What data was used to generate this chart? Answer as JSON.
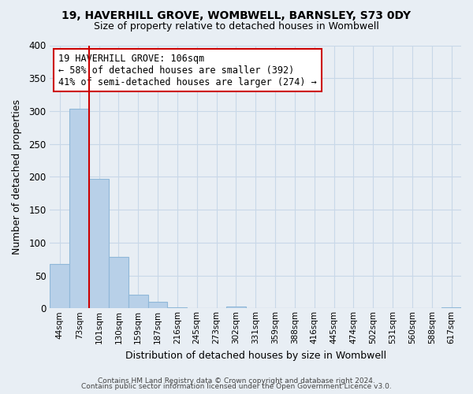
{
  "title1": "19, HAVERHILL GROVE, WOMBWELL, BARNSLEY, S73 0DY",
  "title2": "Size of property relative to detached houses in Wombwell",
  "xlabel": "Distribution of detached houses by size in Wombwell",
  "ylabel": "Number of detached properties",
  "bin_labels": [
    "44sqm",
    "73sqm",
    "101sqm",
    "130sqm",
    "159sqm",
    "187sqm",
    "216sqm",
    "245sqm",
    "273sqm",
    "302sqm",
    "331sqm",
    "359sqm",
    "388sqm",
    "416sqm",
    "445sqm",
    "474sqm",
    "502sqm",
    "531sqm",
    "560sqm",
    "588sqm",
    "617sqm"
  ],
  "bar_values": [
    68,
    303,
    197,
    78,
    21,
    10,
    1,
    0,
    0,
    3,
    0,
    0,
    0,
    0,
    0,
    0,
    0,
    0,
    0,
    0,
    2
  ],
  "bar_color": "#b8d0e8",
  "bar_edgecolor": "#90b8d8",
  "property_line_color": "#cc0000",
  "annotation_line1": "19 HAVERHILL GROVE: 106sqm",
  "annotation_line2": "← 58% of detached houses are smaller (392)",
  "annotation_line3": "41% of semi-detached houses are larger (274) →",
  "annotation_box_color": "#ffffff",
  "annotation_box_edgecolor": "#cc0000",
  "ylim": [
    0,
    400
  ],
  "yticks": [
    0,
    50,
    100,
    150,
    200,
    250,
    300,
    350,
    400
  ],
  "footer1": "Contains HM Land Registry data © Crown copyright and database right 2024.",
  "footer2": "Contains public sector information licensed under the Open Government Licence v3.0.",
  "bg_color": "#e8eef4",
  "plot_bg_color": "#e8eef4",
  "grid_color": "#c8d8e8"
}
